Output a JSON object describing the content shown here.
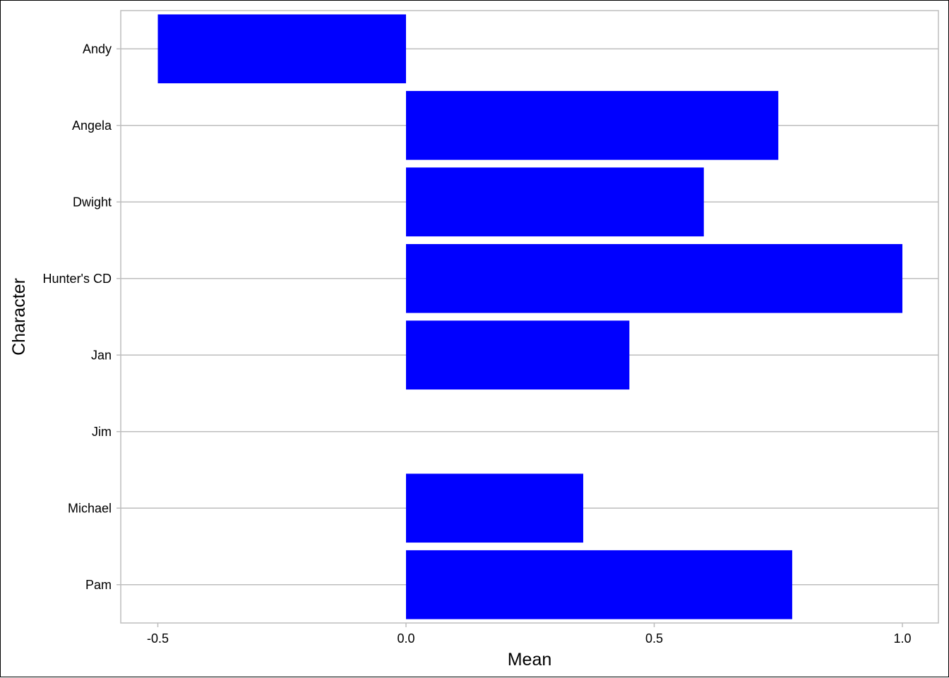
{
  "chart_data": {
    "type": "bar",
    "orientation": "horizontal",
    "xlabel": "Mean",
    "ylabel": "Character",
    "xlim": [
      -0.6,
      1.06
    ],
    "x_ticks": [
      -0.5,
      0.0,
      0.5,
      1.0
    ],
    "x_tick_labels": [
      "-0.5",
      "0.0",
      "0.5",
      "1.0"
    ],
    "grid": true,
    "categories": [
      "Andy",
      "Angela",
      "Dwight",
      "Hunter's CD",
      "Jan",
      "Jim",
      "Michael",
      "Pam"
    ],
    "values": [
      -0.5,
      0.75,
      0.6,
      1.0,
      0.45,
      0.0,
      0.357,
      0.778
    ],
    "bar_color": "#0000ff",
    "grid_color": "#bdbdbd",
    "panel_border_color": "#bdbdbd"
  }
}
